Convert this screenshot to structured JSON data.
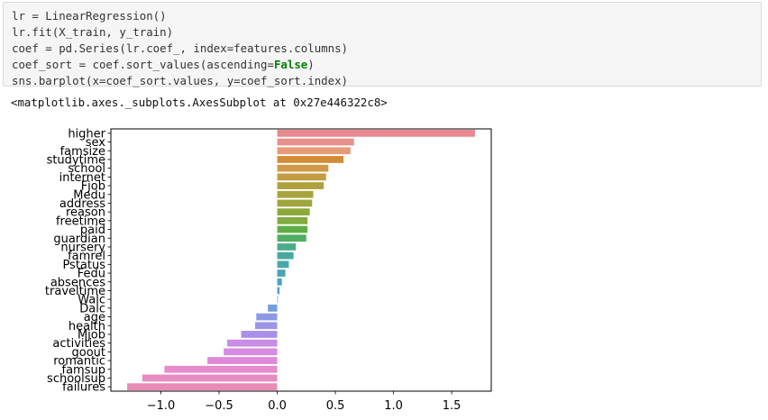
{
  "code_cell": {
    "lines": [
      "lr = LinearRegression()",
      "lr.fit(X_train, y_train)",
      "coef = pd.Series(lr.coef_, index=features.columns)",
      "coef_sort = coef.sort_values(ascending=",
      "sns.barplot(x=coef_sort.values, y=coef_sort.index)"
    ],
    "line4_keyword": "False",
    "line4_tail": ")"
  },
  "output": {
    "repr": "<matplotlib.axes._subplots.AxesSubplot at 0x27e446322c8>"
  },
  "chart_data": {
    "type": "bar",
    "orientation": "horizontal",
    "categories": [
      "higher",
      "sex",
      "famsize",
      "studytime",
      "school",
      "internet",
      "Fjob",
      "Medu",
      "address",
      "reason",
      "freetime",
      "paid",
      "guardian",
      "nursery",
      "famrel",
      "Pstatus",
      "Fedu",
      "absences",
      "traveltime",
      "Walc",
      "Dalc",
      "age",
      "health",
      "Mjob",
      "activities",
      "goout",
      "romantic",
      "famsup",
      "schoolsup",
      "failures"
    ],
    "values": [
      1.7,
      0.66,
      0.63,
      0.57,
      0.44,
      0.42,
      0.4,
      0.31,
      0.3,
      0.28,
      0.26,
      0.26,
      0.25,
      0.16,
      0.14,
      0.1,
      0.07,
      0.04,
      0.02,
      0.0,
      -0.08,
      -0.18,
      -0.19,
      -0.31,
      -0.43,
      -0.46,
      -0.6,
      -0.97,
      -1.16,
      -1.29
    ],
    "colors": [
      "#e8888f",
      "#e8908b",
      "#e59b78",
      "#d38c36",
      "#cf9a45",
      "#c39b43",
      "#b0a03e",
      "#a8a43d",
      "#9ea63d",
      "#8fa83c",
      "#7fab3f",
      "#5eae45",
      "#4fae63",
      "#4bac8a",
      "#49a9a0",
      "#4aa8ab",
      "#48a5b7",
      "#4ca2c4",
      "#57a0cf",
      "#7fa7dc",
      "#6f9fdf",
      "#8d99e5",
      "#9c95e7",
      "#a890e9",
      "#c88de5",
      "#d88be2",
      "#e088d9",
      "#e68ccb",
      "#e68bc1",
      "#e98cb5"
    ],
    "xticks": [
      -1.0,
      -0.5,
      0.0,
      0.5,
      1.0,
      1.5
    ],
    "xtick_labels": [
      "−1.0",
      "−0.5",
      "0.0",
      "0.5",
      "1.0",
      "1.5"
    ],
    "xlim": [
      -1.43,
      1.84
    ],
    "xlabel": "",
    "ylabel": "",
    "title": "",
    "grid": false,
    "legend": "none"
  }
}
